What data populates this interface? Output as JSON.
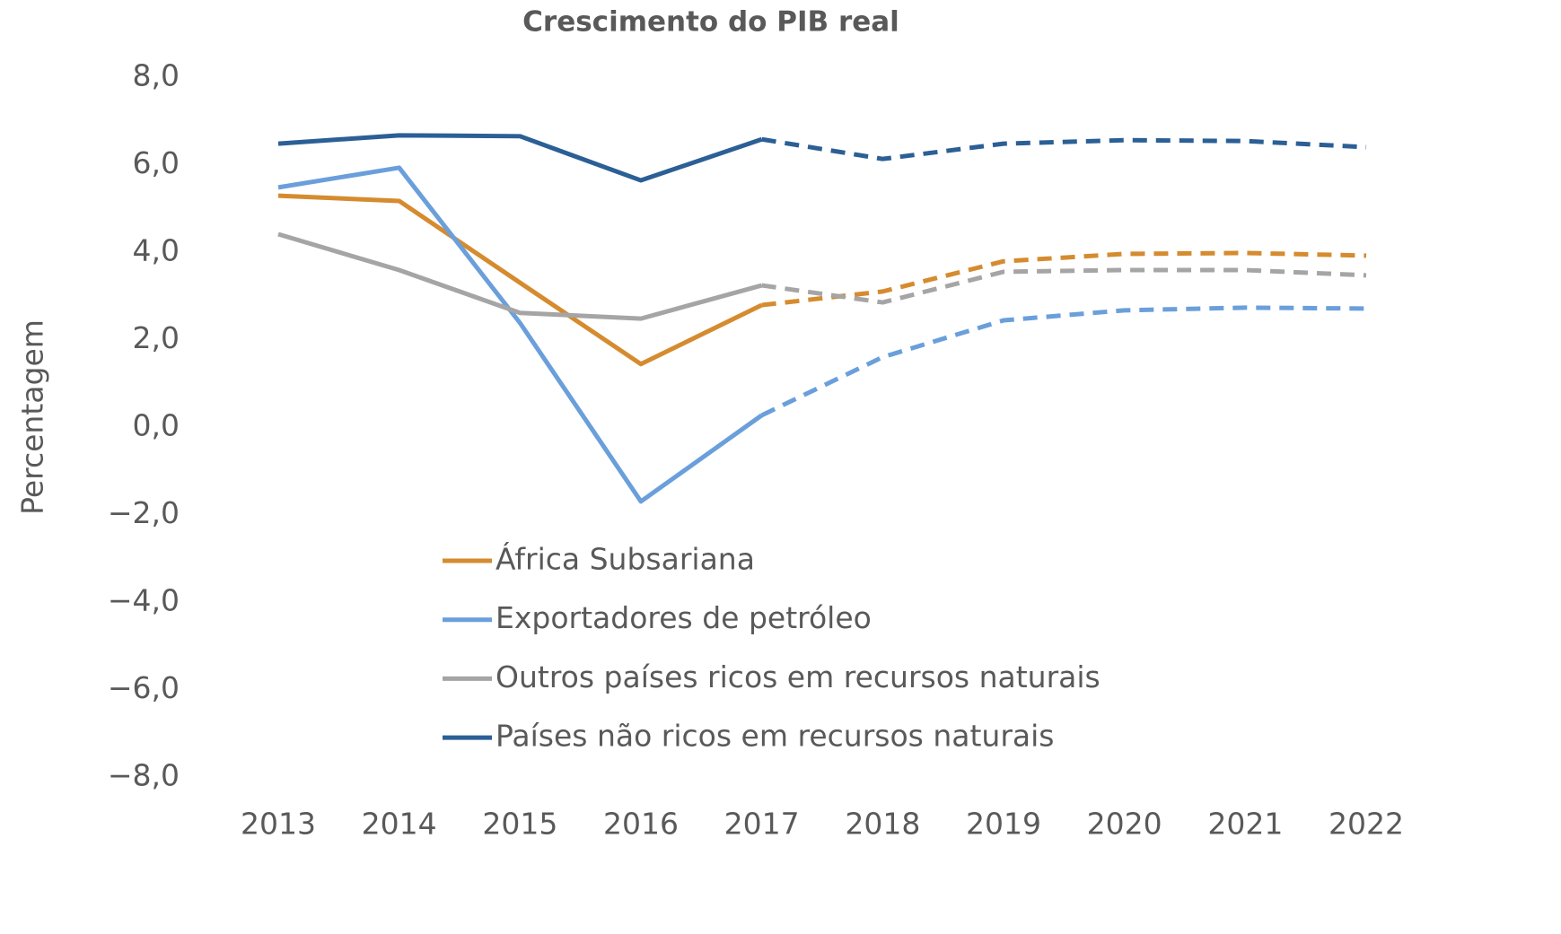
{
  "chart_data": {
    "type": "line",
    "title": "Crescimento do PIB real",
    "y_label": "Percentagem",
    "x": [
      "2013",
      "2014",
      "2015",
      "2016",
      "2017",
      "2018",
      "2019",
      "2020",
      "2021",
      "2022"
    ],
    "dashed_from": "2017",
    "series": [
      {
        "name": "África Subsariana",
        "color": "#d58b2f",
        "values": [
          5.29,
          5.17,
          3.3,
          1.44,
          2.79,
          3.1,
          3.79,
          3.96,
          3.98,
          3.92
        ]
      },
      {
        "name": "Exportadores de petróleo",
        "color": "#6a9fdb",
        "values": [
          5.48,
          5.93,
          2.38,
          -1.7,
          0.27,
          1.6,
          2.44,
          2.67,
          2.73,
          2.71
        ]
      },
      {
        "name": "Outros países ricos em recursos naturais",
        "color": "#a5a5a5",
        "values": [
          4.41,
          3.59,
          2.61,
          2.48,
          3.24,
          2.85,
          3.55,
          3.59,
          3.59,
          3.47
        ]
      },
      {
        "name": "Países não ricos em recursos naturais",
        "color": "#2b5f96",
        "values": [
          6.48,
          6.67,
          6.65,
          5.64,
          6.58,
          6.13,
          6.48,
          6.56,
          6.54,
          6.4
        ]
      }
    ],
    "ylim": [
      -8,
      8
    ],
    "yticks": [
      {
        "value": -8,
        "label": "−8,0"
      },
      {
        "value": -6,
        "label": "−6,0"
      },
      {
        "value": -4,
        "label": "−4,0"
      },
      {
        "value": -2,
        "label": "−2,0"
      },
      {
        "value": 0,
        "label": "0,0"
      },
      {
        "value": 2,
        "label": "2,0"
      },
      {
        "value": 4,
        "label": "4,0"
      },
      {
        "value": 6,
        "label": "6,0"
      },
      {
        "value": 8,
        "label": "8,0"
      }
    ]
  }
}
